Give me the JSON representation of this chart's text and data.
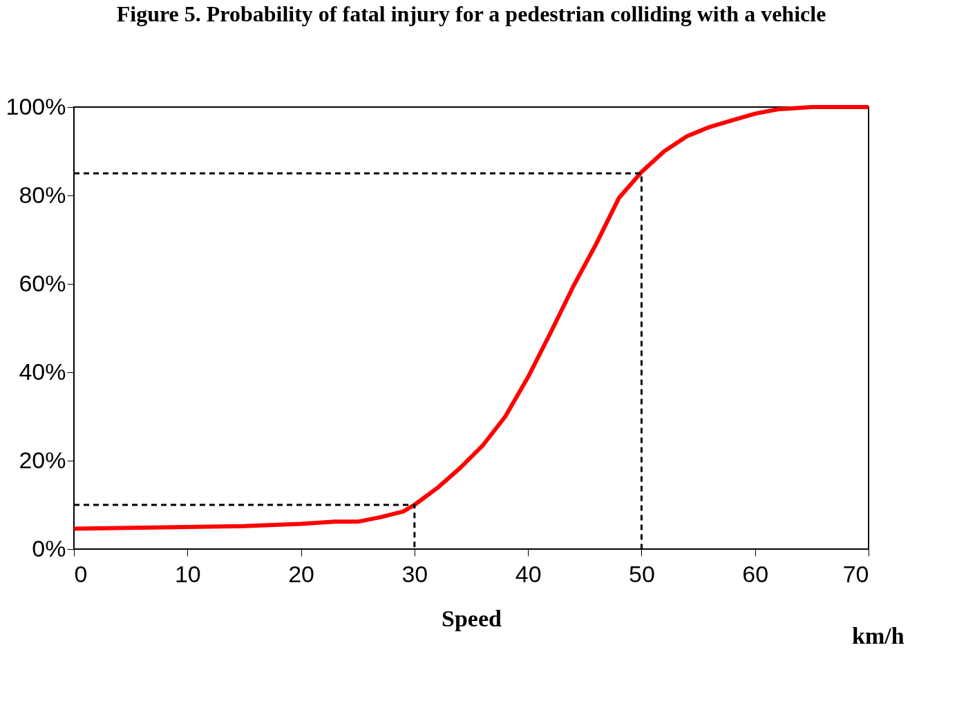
{
  "chart_data": {
    "type": "line",
    "title": "Figure 5.  Probability of fatal injury for a pedestrian colliding with a vehicle",
    "xlabel": "Speed",
    "annotations": [
      "km/h"
    ],
    "xlim": [
      0,
      70
    ],
    "xticks": [
      0,
      10,
      20,
      30,
      40,
      50,
      60,
      70
    ],
    "ylim": [
      0,
      100
    ],
    "yticks": [
      {
        "value": 0,
        "label": "0%"
      },
      {
        "value": 20,
        "label": "20%"
      },
      {
        "value": 40,
        "label": "40%"
      },
      {
        "value": 60,
        "label": "60%"
      },
      {
        "value": 80,
        "label": "80%"
      },
      {
        "value": 100,
        "label": "100%"
      }
    ],
    "grid": false,
    "marker": "none",
    "series": [
      {
        "color": "#ff0000",
        "line_style": "solid",
        "x": [
          0,
          10,
          15,
          20,
          23,
          25,
          27,
          29,
          30,
          32,
          34,
          36,
          38,
          40,
          42,
          44,
          46,
          48,
          50,
          52,
          54,
          56,
          58,
          60,
          62,
          65,
          70
        ],
        "values": [
          4.6,
          5,
          5.2,
          5.7,
          6.2,
          6.2,
          7.2,
          8.5,
          10,
          13.8,
          18.3,
          23.4,
          30,
          38.9,
          49,
          59.5,
          69,
          79.4,
          85.3,
          90,
          93.4,
          95.5,
          97,
          98.5,
          99.5,
          100,
          100
        ]
      },
      {
        "color": "#000000",
        "line_style": "dashed",
        "x": [
          0,
          30,
          30
        ],
        "values": [
          10,
          10,
          0
        ]
      },
      {
        "color": "#000000",
        "line_style": "dashed",
        "x": [
          0,
          50,
          50
        ],
        "values": [
          85,
          85,
          0
        ]
      }
    ]
  }
}
